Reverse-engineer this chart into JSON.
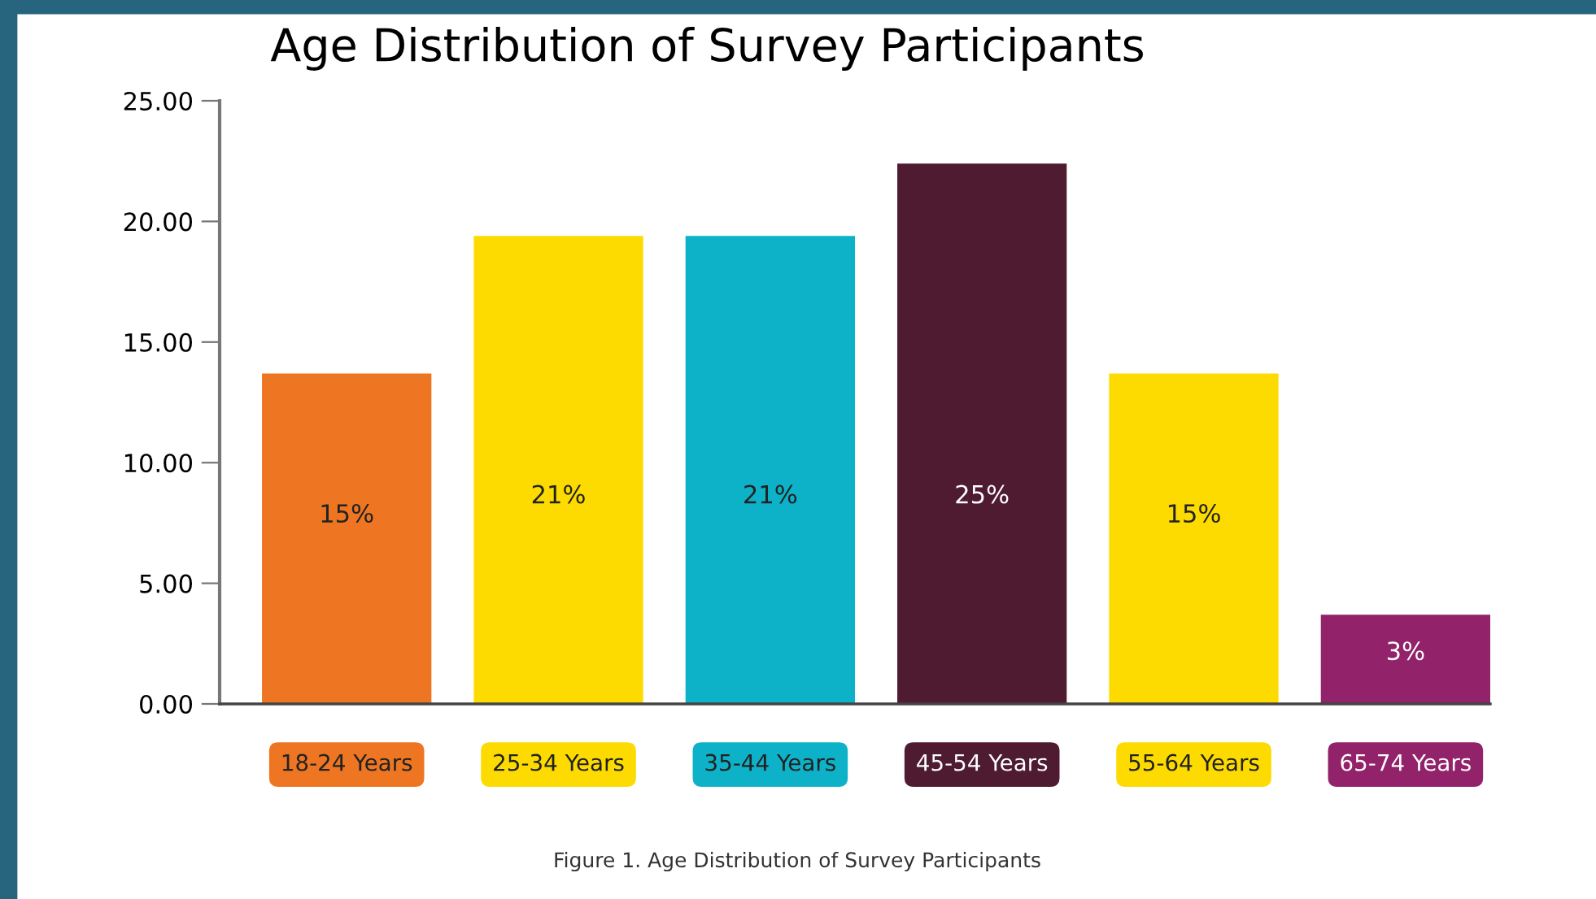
{
  "chart_data": {
    "type": "bar",
    "title": "Age Distribution of Survey Participants",
    "categories": [
      "18-24 Years",
      "25-34 Years",
      "35-44 Years",
      "45-54 Years",
      "55-64 Years",
      "65-74 Years"
    ],
    "values": [
      13.7,
      19.4,
      19.4,
      22.4,
      13.7,
      3.7
    ],
    "colors": [
      "#ee7623",
      "#fddb00",
      "#0db2c8",
      "#4f1b31",
      "#fddb00",
      "#92226a"
    ],
    "ylim": [
      0,
      25
    ],
    "yticks": [
      {
        "value": 0,
        "label": "0.00"
      },
      {
        "value": 5,
        "label": "5.00"
      },
      {
        "value": 10,
        "label": "10.00"
      },
      {
        "value": 15,
        "label": "15.00"
      },
      {
        "value": 20,
        "label": "20.00"
      },
      {
        "value": 25,
        "label": "25.00"
      }
    ],
    "grid": false,
    "legend": false,
    "annotations": [
      "15%",
      "21%",
      "21%",
      "25%",
      "15%",
      "3%",
      "Figure 1. Age Distribution of Survey Participants"
    ]
  }
}
